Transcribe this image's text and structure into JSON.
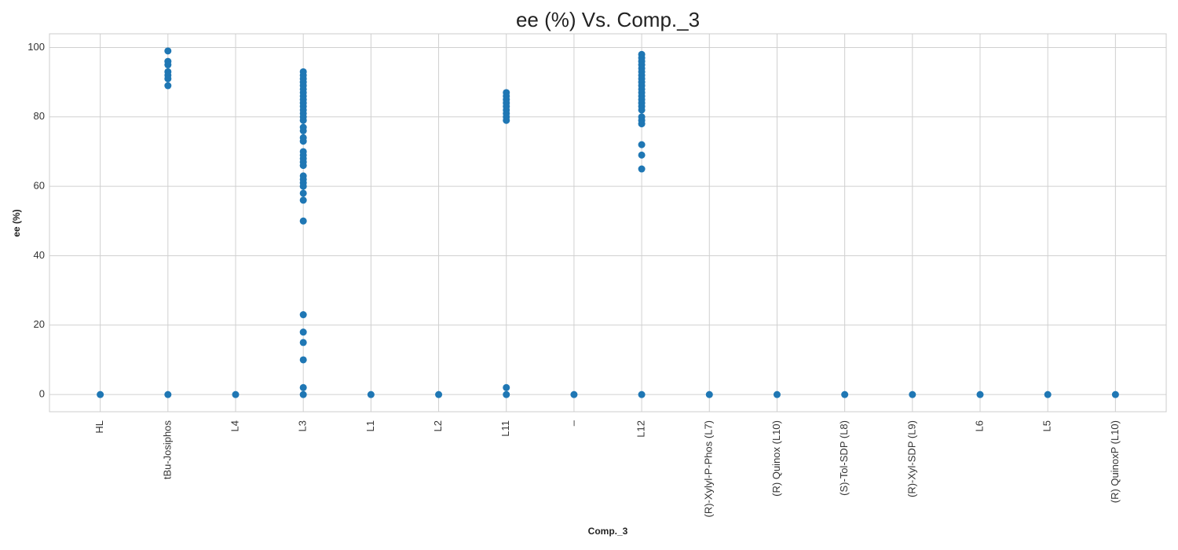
{
  "chart_data": {
    "type": "scatter",
    "title": "ee (%) Vs. Comp._3",
    "xlabel": "Comp._3",
    "ylabel": "ee (%)",
    "categories": [
      "HL",
      "tBu-Josiphos",
      "L4",
      "L3",
      "L1",
      "L2",
      "L11",
      "–",
      "L12",
      "(R)-Xylyl-P-Phos (L7)",
      "(R) Quinox (L10)",
      "(S)-Tol-SDP (L8)",
      "(R)-Xyl-SDP (L9)",
      "L6",
      "L5",
      "(R) QuinoxP (L10)"
    ],
    "values": [
      [
        0
      ],
      [
        99,
        96,
        95,
        93,
        92,
        91,
        89,
        0
      ],
      [
        0
      ],
      [
        93,
        92,
        91,
        90,
        89,
        88,
        87,
        86,
        85,
        84,
        83,
        82,
        81,
        80,
        79,
        77,
        76,
        74,
        73,
        70,
        69,
        68,
        67,
        66,
        63,
        62,
        61,
        60,
        58,
        56,
        50,
        23,
        18,
        15,
        10,
        2,
        0
      ],
      [
        0
      ],
      [
        0
      ],
      [
        87,
        86,
        85,
        84,
        83,
        82,
        81,
        80,
        79,
        2,
        0
      ],
      [
        0
      ],
      [
        98,
        97,
        96,
        95,
        94,
        93,
        92,
        91,
        90,
        89,
        88,
        87,
        86,
        85,
        84,
        83,
        82,
        80,
        79,
        78,
        72,
        69,
        65,
        0
      ],
      [
        0
      ],
      [
        0
      ],
      [
        0
      ],
      [
        0
      ],
      [
        0
      ],
      [
        0
      ],
      [
        0
      ]
    ],
    "color": "#1f77b4",
    "ylim": [
      -4.95,
      103.95
    ],
    "yticks": [
      0,
      20,
      40,
      60,
      80,
      100
    ],
    "grid": true
  }
}
